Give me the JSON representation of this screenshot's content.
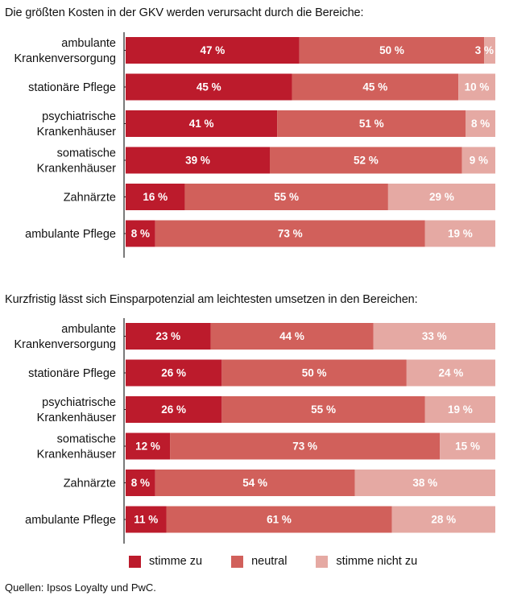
{
  "colors": {
    "stimme_zu": "#bc1b2c",
    "neutral": "#d1605b",
    "stimme_nicht_zu": "#e5a9a3",
    "text_light": "#ffffff"
  },
  "legend": [
    {
      "label": "stimme zu",
      "color": "#bc1b2c"
    },
    {
      "label": "neutral",
      "color": "#d1605b"
    },
    {
      "label": "stimme nicht zu",
      "color": "#e5a9a3"
    }
  ],
  "source": "Quellen: Ipsos Loyalty und PwC.",
  "chart_data": [
    {
      "type": "bar",
      "orientation": "horizontal",
      "stacked": true,
      "title": "Die größten Kosten in der GKV werden verursacht durch die Bereiche:",
      "value_suffix": " %",
      "xlim": [
        0,
        100
      ],
      "categories": [
        [
          "ambulante",
          "Krankenversorgung"
        ],
        [
          "stationäre Pflege"
        ],
        [
          "psychiatrische",
          "Krankenhäuser"
        ],
        [
          "somatische",
          "Krankenhäuser"
        ],
        [
          "Zahnärzte"
        ],
        [
          "ambulante Pflege"
        ]
      ],
      "series": [
        {
          "name": "stimme zu",
          "values": [
            47,
            45,
            41,
            39,
            16,
            8
          ]
        },
        {
          "name": "neutral",
          "values": [
            50,
            45,
            51,
            52,
            55,
            73
          ]
        },
        {
          "name": "stimme nicht zu",
          "values": [
            3,
            10,
            8,
            9,
            29,
            19
          ]
        }
      ]
    },
    {
      "type": "bar",
      "orientation": "horizontal",
      "stacked": true,
      "title": "Kurzfristig lässt sich Einsparpotenzial am leichtesten umsetzen in den Bereichen:",
      "value_suffix": " %",
      "xlim": [
        0,
        100
      ],
      "categories": [
        [
          "ambulante",
          "Krankenversorgung"
        ],
        [
          "stationäre Pflege"
        ],
        [
          "psychiatrische",
          "Krankenhäuser"
        ],
        [
          "somatische",
          "Krankenhäuser"
        ],
        [
          "Zahnärzte"
        ],
        [
          "ambulante Pflege"
        ]
      ],
      "series": [
        {
          "name": "stimme zu",
          "values": [
            23,
            26,
            26,
            12,
            8,
            11
          ]
        },
        {
          "name": "neutral",
          "values": [
            44,
            50,
            55,
            73,
            54,
            61
          ]
        },
        {
          "name": "stimme nicht zu",
          "values": [
            33,
            24,
            19,
            15,
            38,
            28
          ]
        }
      ]
    }
  ]
}
